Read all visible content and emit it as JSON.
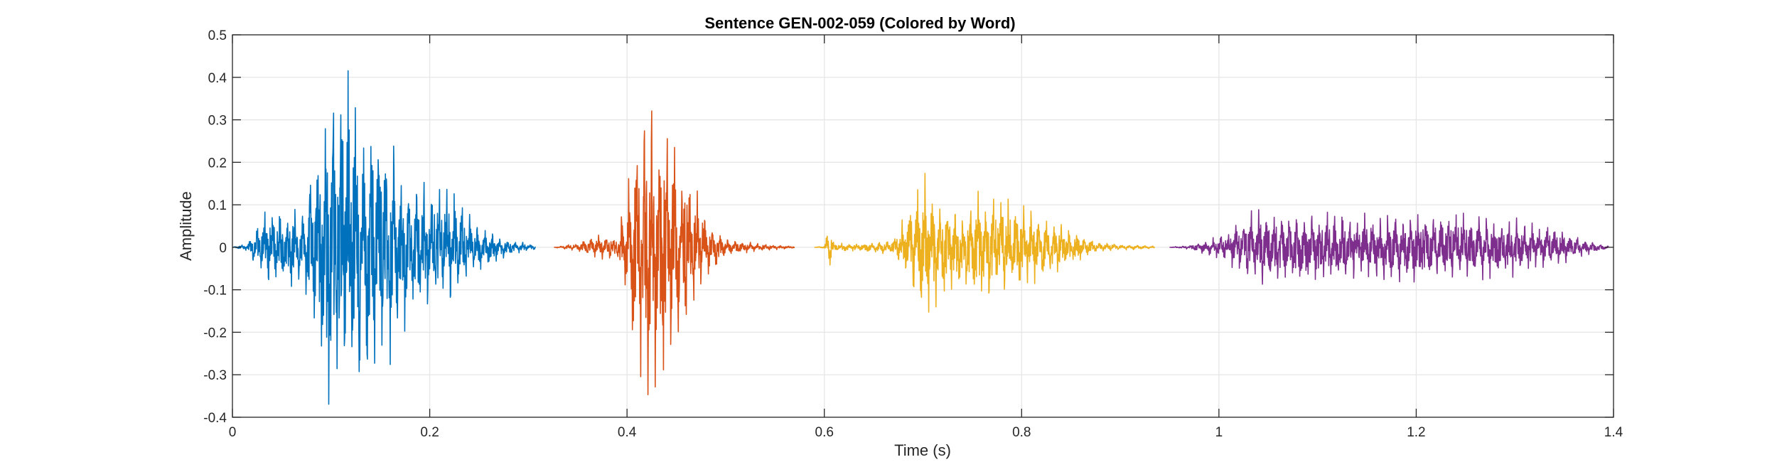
{
  "chart_data": {
    "type": "line",
    "title": "Sentence GEN-002-059 (Colored by Word)",
    "xlabel": "Time (s)",
    "ylabel": "Amplitude",
    "xlim": [
      0,
      1.4
    ],
    "ylim": [
      -0.4,
      0.5
    ],
    "xticks": [
      0,
      0.2,
      0.4,
      0.6,
      0.8,
      1,
      1.2,
      1.4
    ],
    "xtick_labels": [
      "0",
      "0.2",
      "0.4",
      "0.6",
      "0.8",
      "1",
      "1.2",
      "1.4"
    ],
    "yticks": [
      -0.4,
      -0.3,
      -0.2,
      -0.1,
      0,
      0.1,
      0.2,
      0.3,
      0.4,
      0.5
    ],
    "ytick_labels": [
      "-0.4",
      "-0.3",
      "-0.2",
      "-0.1",
      "0",
      "0.1",
      "0.2",
      "0.3",
      "0.4",
      "0.5"
    ],
    "grid": true,
    "series": [
      {
        "color": "#0072BD",
        "t_start": 0.0,
        "t_end": 0.307,
        "envelope": [
          [
            0.0,
            0.0
          ],
          [
            0.015,
            0.01
          ],
          [
            0.03,
            0.08
          ],
          [
            0.05,
            0.1
          ],
          [
            0.07,
            0.1
          ],
          [
            0.08,
            0.2
          ],
          [
            0.1,
            0.45
          ],
          [
            0.12,
            0.42
          ],
          [
            0.14,
            0.33
          ],
          [
            0.16,
            0.3
          ],
          [
            0.18,
            0.16
          ],
          [
            0.2,
            0.15
          ],
          [
            0.22,
            0.14
          ],
          [
            0.24,
            0.08
          ],
          [
            0.26,
            0.04
          ],
          [
            0.28,
            0.02
          ],
          [
            0.307,
            0.005
          ]
        ]
      },
      {
        "color": "#D95319",
        "t_start": 0.326,
        "t_end": 0.57,
        "envelope": [
          [
            0.326,
            0.0
          ],
          [
            0.35,
            0.01
          ],
          [
            0.37,
            0.03
          ],
          [
            0.39,
            0.03
          ],
          [
            0.4,
            0.15
          ],
          [
            0.41,
            0.37
          ],
          [
            0.42,
            0.35
          ],
          [
            0.44,
            0.3
          ],
          [
            0.46,
            0.2
          ],
          [
            0.48,
            0.08
          ],
          [
            0.5,
            0.02
          ],
          [
            0.53,
            0.01
          ],
          [
            0.57,
            0.002
          ]
        ]
      },
      {
        "color": "#EDB120",
        "t_start": 0.59,
        "t_end": 0.935,
        "envelope": [
          [
            0.59,
            0.0
          ],
          [
            0.6,
            0.003
          ],
          [
            0.605,
            0.07
          ],
          [
            0.61,
            0.01
          ],
          [
            0.64,
            0.01
          ],
          [
            0.67,
            0.02
          ],
          [
            0.69,
            0.12
          ],
          [
            0.7,
            0.18
          ],
          [
            0.72,
            0.12
          ],
          [
            0.74,
            0.1
          ],
          [
            0.76,
            0.14
          ],
          [
            0.78,
            0.12
          ],
          [
            0.82,
            0.08
          ],
          [
            0.84,
            0.06
          ],
          [
            0.86,
            0.03
          ],
          [
            0.88,
            0.01
          ],
          [
            0.935,
            0.003
          ]
        ]
      },
      {
        "color": "#7E2F8E",
        "t_start": 0.95,
        "t_end": 1.395,
        "envelope": [
          [
            0.95,
            0.0
          ],
          [
            0.97,
            0.005
          ],
          [
            0.99,
            0.02
          ],
          [
            1.01,
            0.04
          ],
          [
            1.03,
            0.085
          ],
          [
            1.06,
            0.095
          ],
          [
            1.1,
            0.09
          ],
          [
            1.15,
            0.08
          ],
          [
            1.2,
            0.085
          ],
          [
            1.25,
            0.08
          ],
          [
            1.3,
            0.07
          ],
          [
            1.34,
            0.05
          ],
          [
            1.37,
            0.02
          ],
          [
            1.395,
            0.003
          ]
        ]
      }
    ]
  }
}
